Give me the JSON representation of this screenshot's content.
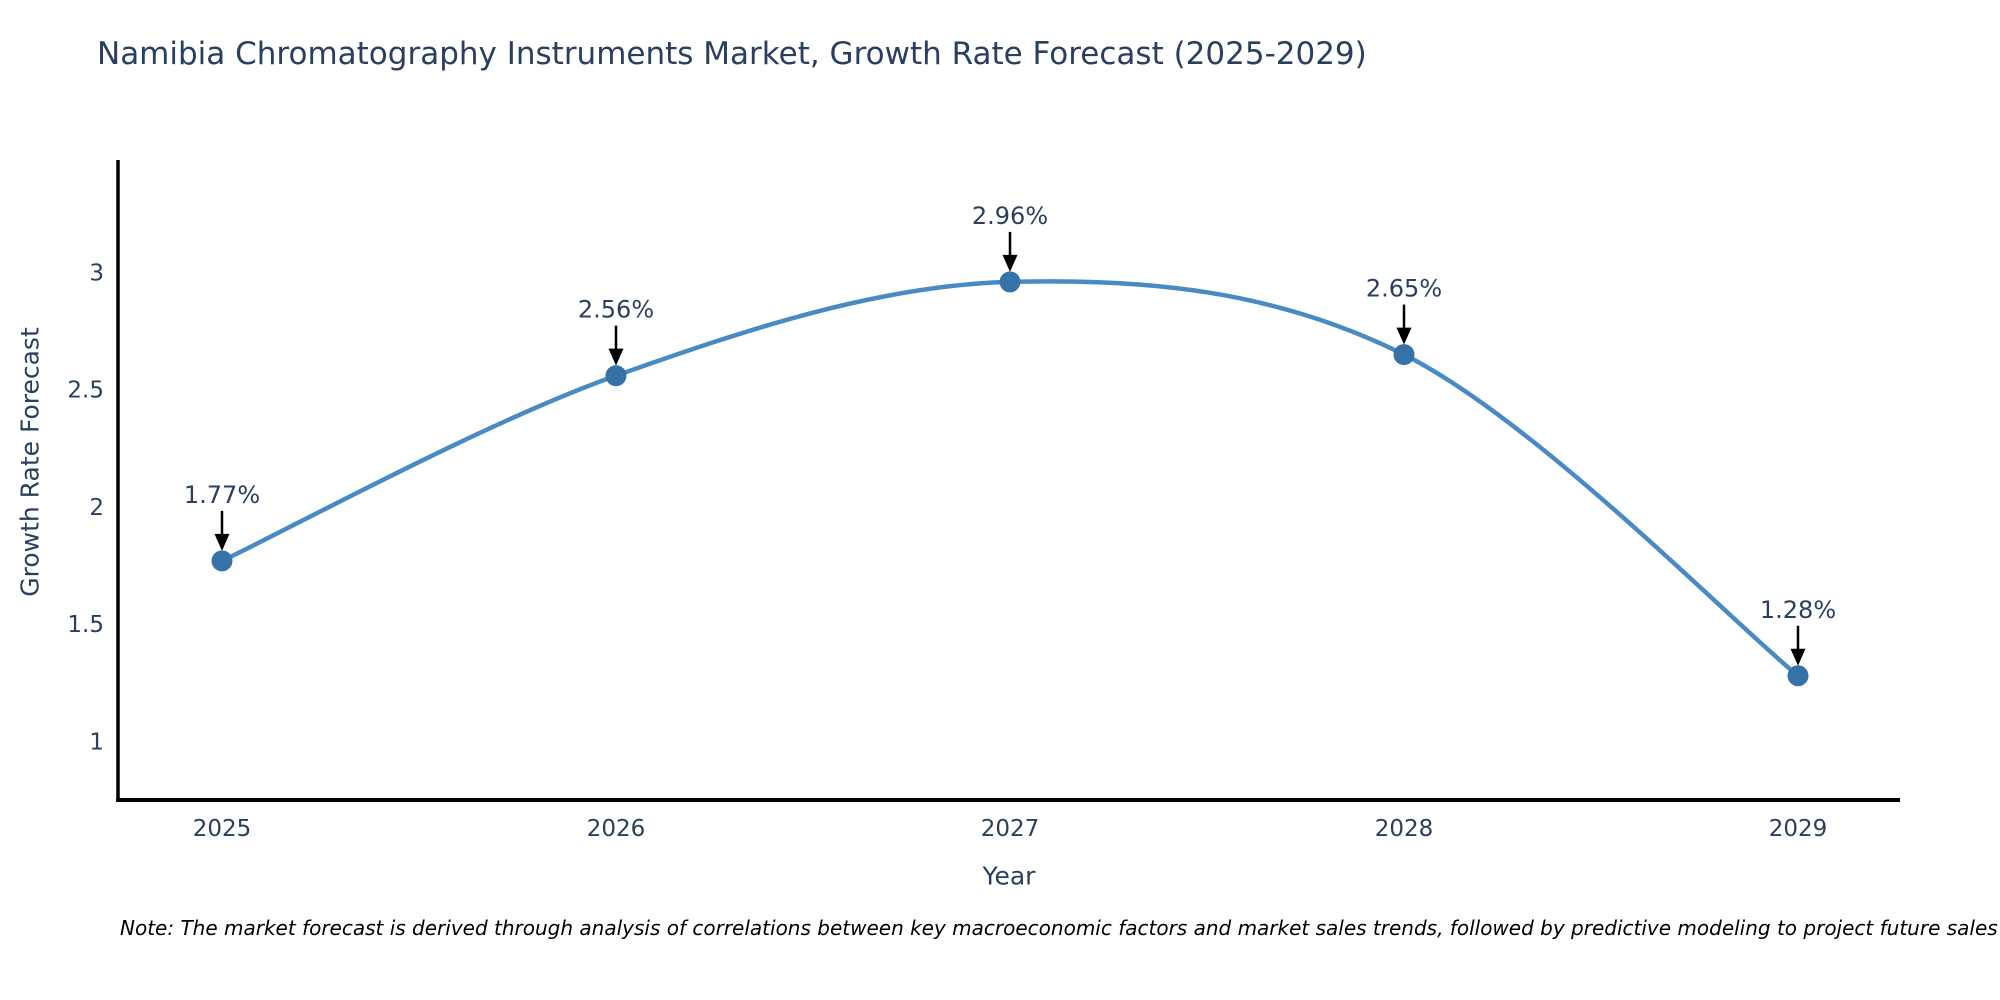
{
  "title": "Namibia Chromatography Instruments Market, Growth Rate Forecast (2025-2029)",
  "note": "Note: The market forecast is derived through analysis of correlations between key macroeconomic factors and market sales trends, followed by predictive modeling to project future sales",
  "chart_data": {
    "type": "line",
    "line_shape": "spline",
    "title": "Namibia Chromatography Instruments Market, Growth Rate Forecast (2025-2029)",
    "xlabel": "Year",
    "ylabel": "Growth Rate Forecast",
    "categories": [
      "2025",
      "2026",
      "2027",
      "2028",
      "2029"
    ],
    "series": [
      {
        "name": "Growth Rate Forecast",
        "values": [
          1.77,
          2.56,
          2.96,
          2.65,
          1.28
        ]
      }
    ],
    "point_labels": [
      "1.77%",
      "2.56%",
      "2.96%",
      "2.65%",
      "1.28%"
    ],
    "yticks": [
      1,
      1.5,
      2,
      2.5,
      3
    ],
    "ylim": [
      0.75,
      3.48
    ],
    "grid": false,
    "legend": "none",
    "markers": true,
    "annotations_arrows": true,
    "colors": {
      "line": "#4a8ac4",
      "marker": "#3472a8",
      "text": "#2a3f5f",
      "axis": "#000000",
      "arrow": "#000000",
      "background": "#ffffff"
    }
  }
}
